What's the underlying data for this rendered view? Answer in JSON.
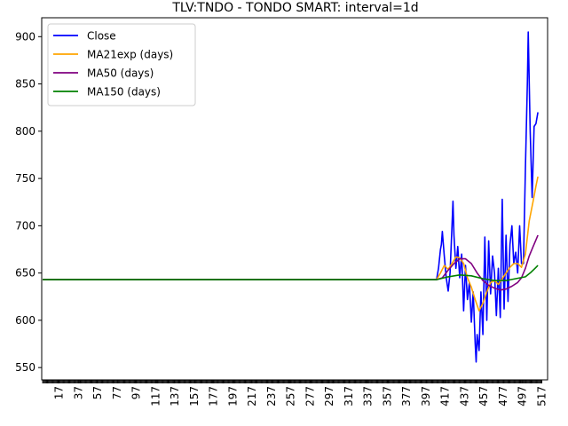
{
  "chart_data": {
    "type": "line",
    "title": "TLV:TNDO - TONDO SMART: interval=1d",
    "xlabel": "",
    "ylabel": "",
    "xlim": [
      -1,
      523
    ],
    "ylim": [
      537,
      920
    ],
    "grid": false,
    "legend_position": "top-left",
    "y_ticks": [
      550,
      600,
      650,
      700,
      750,
      800,
      850,
      900
    ],
    "x_ticks": [
      17,
      37,
      57,
      77,
      97,
      117,
      137,
      157,
      177,
      197,
      217,
      237,
      257,
      277,
      297,
      317,
      337,
      357,
      377,
      397,
      417,
      437,
      457,
      477,
      497,
      517
    ],
    "series": [
      {
        "name": "Close",
        "color": "#0000ff",
        "points": [
          [
            0,
            643
          ],
          [
            408,
            643
          ],
          [
            410,
            655
          ],
          [
            412,
            675
          ],
          [
            413,
            680
          ],
          [
            414,
            694
          ],
          [
            416,
            668
          ],
          [
            418,
            645
          ],
          [
            420,
            631
          ],
          [
            422,
            650
          ],
          [
            424,
            700
          ],
          [
            425,
            726
          ],
          [
            426,
            690
          ],
          [
            428,
            655
          ],
          [
            430,
            678
          ],
          [
            432,
            645
          ],
          [
            434,
            670
          ],
          [
            436,
            610
          ],
          [
            438,
            658
          ],
          [
            440,
            622
          ],
          [
            442,
            640
          ],
          [
            444,
            598
          ],
          [
            446,
            630
          ],
          [
            448,
            576
          ],
          [
            449,
            556
          ],
          [
            450,
            585
          ],
          [
            452,
            568
          ],
          [
            454,
            630
          ],
          [
            456,
            585
          ],
          [
            458,
            688
          ],
          [
            460,
            600
          ],
          [
            462,
            684
          ],
          [
            464,
            628
          ],
          [
            466,
            668
          ],
          [
            468,
            650
          ],
          [
            470,
            605
          ],
          [
            472,
            655
          ],
          [
            474,
            603
          ],
          [
            476,
            728
          ],
          [
            478,
            612
          ],
          [
            480,
            690
          ],
          [
            482,
            620
          ],
          [
            484,
            680
          ],
          [
            486,
            700
          ],
          [
            488,
            660
          ],
          [
            490,
            672
          ],
          [
            492,
            650
          ],
          [
            494,
            700
          ],
          [
            496,
            660
          ],
          [
            498,
            660
          ],
          [
            500,
            760
          ],
          [
            502,
            850
          ],
          [
            503,
            905
          ],
          [
            505,
            800
          ],
          [
            507,
            730
          ],
          [
            509,
            805
          ],
          [
            511,
            808
          ],
          [
            513,
            820
          ]
        ]
      },
      {
        "name": "MA21exp (days)",
        "color": "#ffa500",
        "points": [
          [
            0,
            643
          ],
          [
            408,
            643
          ],
          [
            412,
            650
          ],
          [
            416,
            658
          ],
          [
            420,
            654
          ],
          [
            424,
            660
          ],
          [
            428,
            667
          ],
          [
            432,
            666
          ],
          [
            436,
            660
          ],
          [
            440,
            645
          ],
          [
            444,
            635
          ],
          [
            448,
            622
          ],
          [
            452,
            610
          ],
          [
            456,
            618
          ],
          [
            460,
            630
          ],
          [
            464,
            640
          ],
          [
            468,
            642
          ],
          [
            472,
            638
          ],
          [
            476,
            644
          ],
          [
            480,
            650
          ],
          [
            484,
            656
          ],
          [
            488,
            660
          ],
          [
            492,
            660
          ],
          [
            496,
            656
          ],
          [
            500,
            670
          ],
          [
            504,
            705
          ],
          [
            508,
            726
          ],
          [
            511,
            742
          ],
          [
            513,
            752
          ]
        ]
      },
      {
        "name": "MA50 (days)",
        "color": "#800080",
        "points": [
          [
            0,
            643
          ],
          [
            408,
            643
          ],
          [
            414,
            645
          ],
          [
            420,
            653
          ],
          [
            426,
            660
          ],
          [
            432,
            665
          ],
          [
            438,
            665
          ],
          [
            444,
            660
          ],
          [
            450,
            650
          ],
          [
            456,
            642
          ],
          [
            462,
            637
          ],
          [
            468,
            634
          ],
          [
            474,
            632
          ],
          [
            480,
            633
          ],
          [
            486,
            636
          ],
          [
            492,
            640
          ],
          [
            496,
            645
          ],
          [
            500,
            655
          ],
          [
            504,
            668
          ],
          [
            508,
            678
          ],
          [
            511,
            685
          ],
          [
            513,
            690
          ]
        ]
      },
      {
        "name": "MA150 (days)",
        "color": "#008000",
        "points": [
          [
            0,
            643
          ],
          [
            408,
            643
          ],
          [
            420,
            646
          ],
          [
            432,
            648
          ],
          [
            444,
            647
          ],
          [
            456,
            644
          ],
          [
            468,
            642
          ],
          [
            480,
            642
          ],
          [
            490,
            644
          ],
          [
            500,
            646
          ],
          [
            506,
            651
          ],
          [
            510,
            655
          ],
          [
            513,
            658
          ]
        ]
      }
    ]
  }
}
